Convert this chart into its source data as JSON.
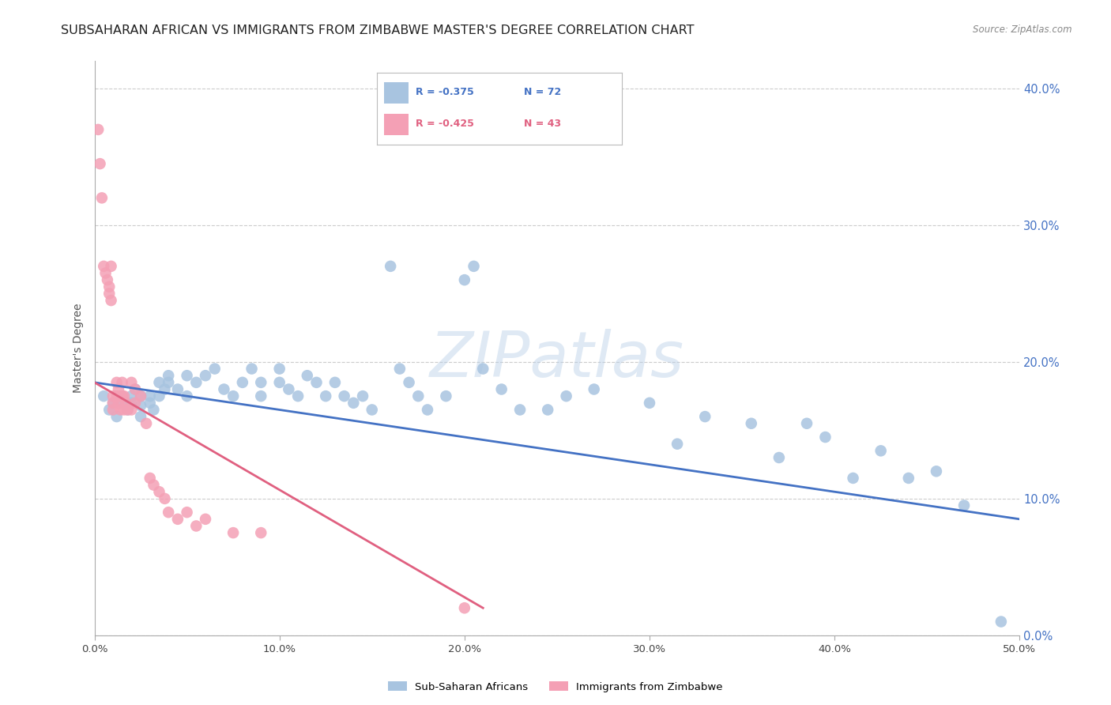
{
  "title": "SUBSAHARAN AFRICAN VS IMMIGRANTS FROM ZIMBABWE MASTER'S DEGREE CORRELATION CHART",
  "source": "Source: ZipAtlas.com",
  "ylabel": "Master's Degree",
  "watermark": "ZIPatlas",
  "xlim": [
    0.0,
    0.5
  ],
  "ylim": [
    0.0,
    0.42
  ],
  "xticks": [
    0.0,
    0.1,
    0.2,
    0.3,
    0.4,
    0.5
  ],
  "yticks": [
    0.0,
    0.1,
    0.2,
    0.3,
    0.4
  ],
  "xtick_labels": [
    "0.0%",
    "10.0%",
    "20.0%",
    "30.0%",
    "40.0%",
    "50.0%"
  ],
  "ytick_labels": [
    "0.0%",
    "10.0%",
    "20.0%",
    "30.0%",
    "40.0%"
  ],
  "blue_color": "#a8c4e0",
  "pink_color": "#f4a0b5",
  "blue_line_color": "#4472c4",
  "pink_line_color": "#e06080",
  "legend_blue_label": "Sub-Saharan Africans",
  "legend_pink_label": "Immigrants from Zimbabwe",
  "blue_R": -0.375,
  "blue_N": 72,
  "pink_R": -0.425,
  "pink_N": 43,
  "blue_scatter_x": [
    0.005,
    0.008,
    0.01,
    0.012,
    0.015,
    0.015,
    0.018,
    0.02,
    0.02,
    0.022,
    0.025,
    0.025,
    0.025,
    0.03,
    0.03,
    0.032,
    0.035,
    0.035,
    0.038,
    0.04,
    0.04,
    0.045,
    0.05,
    0.05,
    0.055,
    0.06,
    0.065,
    0.07,
    0.075,
    0.08,
    0.085,
    0.09,
    0.09,
    0.1,
    0.1,
    0.105,
    0.11,
    0.115,
    0.12,
    0.125,
    0.13,
    0.135,
    0.14,
    0.145,
    0.15,
    0.16,
    0.165,
    0.17,
    0.175,
    0.18,
    0.19,
    0.2,
    0.205,
    0.21,
    0.22,
    0.23,
    0.245,
    0.255,
    0.27,
    0.3,
    0.315,
    0.33,
    0.355,
    0.37,
    0.385,
    0.395,
    0.41,
    0.425,
    0.44,
    0.455,
    0.47,
    0.49
  ],
  "blue_scatter_y": [
    0.175,
    0.165,
    0.17,
    0.16,
    0.17,
    0.175,
    0.165,
    0.175,
    0.17,
    0.18,
    0.175,
    0.168,
    0.16,
    0.175,
    0.17,
    0.165,
    0.185,
    0.175,
    0.18,
    0.19,
    0.185,
    0.18,
    0.175,
    0.19,
    0.185,
    0.19,
    0.195,
    0.18,
    0.175,
    0.185,
    0.195,
    0.185,
    0.175,
    0.195,
    0.185,
    0.18,
    0.175,
    0.19,
    0.185,
    0.175,
    0.185,
    0.175,
    0.17,
    0.175,
    0.165,
    0.27,
    0.195,
    0.185,
    0.175,
    0.165,
    0.175,
    0.26,
    0.27,
    0.195,
    0.18,
    0.165,
    0.165,
    0.175,
    0.18,
    0.17,
    0.14,
    0.16,
    0.155,
    0.13,
    0.155,
    0.145,
    0.115,
    0.135,
    0.115,
    0.12,
    0.095,
    0.01
  ],
  "pink_scatter_x": [
    0.002,
    0.003,
    0.004,
    0.005,
    0.006,
    0.007,
    0.008,
    0.008,
    0.009,
    0.009,
    0.01,
    0.01,
    0.01,
    0.012,
    0.012,
    0.013,
    0.013,
    0.014,
    0.014,
    0.015,
    0.015,
    0.016,
    0.016,
    0.017,
    0.018,
    0.02,
    0.02,
    0.022,
    0.022,
    0.025,
    0.028,
    0.03,
    0.032,
    0.035,
    0.038,
    0.04,
    0.045,
    0.05,
    0.055,
    0.06,
    0.075,
    0.09,
    0.2
  ],
  "pink_scatter_y": [
    0.37,
    0.345,
    0.32,
    0.27,
    0.265,
    0.26,
    0.255,
    0.25,
    0.245,
    0.27,
    0.175,
    0.17,
    0.165,
    0.185,
    0.175,
    0.18,
    0.17,
    0.165,
    0.175,
    0.185,
    0.175,
    0.175,
    0.165,
    0.17,
    0.165,
    0.185,
    0.165,
    0.18,
    0.17,
    0.175,
    0.155,
    0.115,
    0.11,
    0.105,
    0.1,
    0.09,
    0.085,
    0.09,
    0.08,
    0.085,
    0.075,
    0.075,
    0.02
  ],
  "blue_line_x0": 0.0,
  "blue_line_y0": 0.185,
  "blue_line_x1": 0.5,
  "blue_line_y1": 0.085,
  "pink_line_x0": 0.0,
  "pink_line_y0": 0.185,
  "pink_line_x1": 0.21,
  "pink_line_y1": 0.02,
  "background_color": "#ffffff",
  "grid_color": "#cccccc",
  "right_tick_color": "#4472c4",
  "title_fontsize": 11.5,
  "axis_label_fontsize": 10,
  "tick_fontsize": 9.5
}
